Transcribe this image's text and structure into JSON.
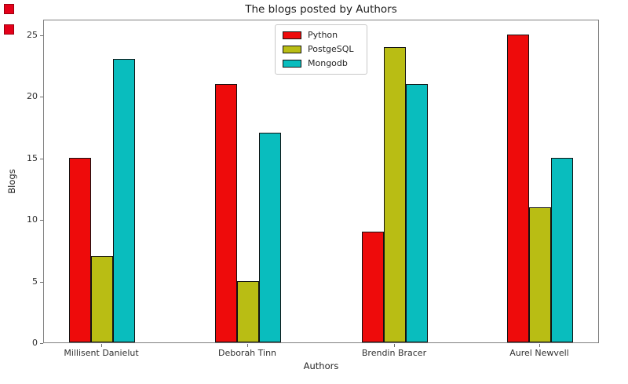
{
  "chart_data": {
    "type": "bar",
    "title": "The blogs posted by Authors",
    "xlabel": "Authors",
    "ylabel": "Blogs",
    "categories": [
      "Millisent Danielut",
      "Deborah Tinn",
      "Brendin Bracer",
      "Aurel Newvell"
    ],
    "series": [
      {
        "name": "Python",
        "color": "#ee0b0b",
        "values": [
          15,
          21,
          9,
          25
        ]
      },
      {
        "name": "PostgeSQL",
        "color": "#b9bd14",
        "values": [
          7,
          5,
          24,
          11
        ]
      },
      {
        "name": "Mongodb",
        "color": "#09bdbe",
        "values": [
          23,
          17,
          21,
          15
        ]
      }
    ],
    "yticks": [
      0,
      5,
      10,
      15,
      20,
      25
    ],
    "ylim": [
      0,
      26.3
    ],
    "grid": false,
    "legend_position": "upper center",
    "bar_edge_color": "#121212",
    "spine_color": "#7f7f7f"
  }
}
